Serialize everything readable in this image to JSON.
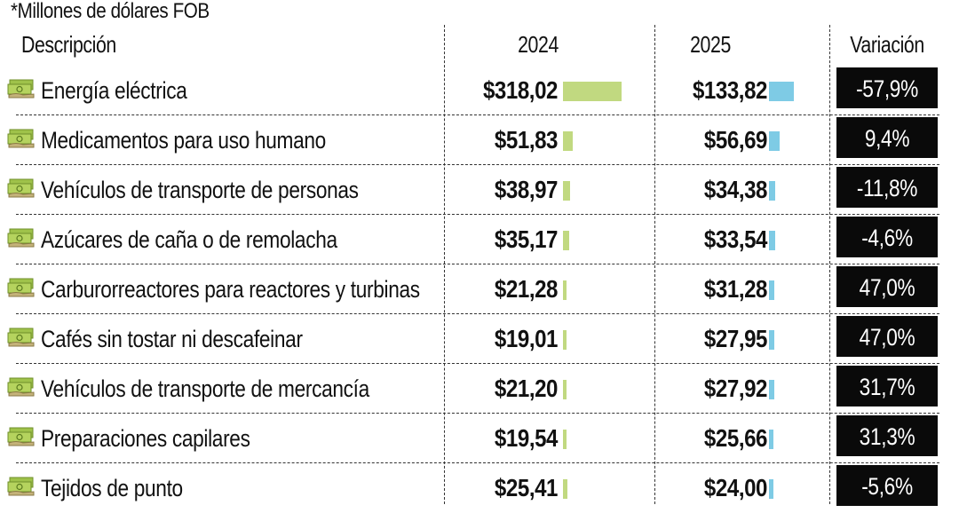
{
  "note": "*Millones de dólares FOB",
  "colors": {
    "bar_2024": "#c1d980",
    "bar_2025": "#7ecbe5",
    "variation_bg": "#0a0a0a"
  },
  "icon": "money-icon",
  "chart_data": {
    "type": "table",
    "columns": [
      "Descripción",
      "2024",
      "2025",
      "Variación"
    ],
    "rows": [
      {
        "desc": "Energía eléctrica",
        "v2024_label": "$318,02",
        "v2024": 318.02,
        "v2025_label": "$133,82",
        "v2025": 133.82,
        "variation": "-57,9%"
      },
      {
        "desc": "Medicamentos para uso humano",
        "v2024_label": "$51,83",
        "v2024": 51.83,
        "v2025_label": "$56,69",
        "v2025": 56.69,
        "variation": "9,4%"
      },
      {
        "desc": "Vehículos de transporte de personas",
        "v2024_label": "$38,97",
        "v2024": 38.97,
        "v2025_label": "$34,38",
        "v2025": 34.38,
        "variation": "-11,8%"
      },
      {
        "desc": "Azúcares de caña o de remolacha",
        "v2024_label": "$35,17",
        "v2024": 35.17,
        "v2025_label": "$33,54",
        "v2025": 33.54,
        "variation": "-4,6%"
      },
      {
        "desc": "Carburorreactores para reactores y turbinas",
        "v2024_label": "$21,28",
        "v2024": 21.28,
        "v2025_label": "$31,28",
        "v2025": 31.28,
        "variation": "47,0%"
      },
      {
        "desc": "Cafés sin tostar ni descafeinar",
        "v2024_label": "$19,01",
        "v2024": 19.01,
        "v2025_label": "$27,95",
        "v2025": 27.95,
        "variation": "47,0%"
      },
      {
        "desc": "Vehículos de transporte de mercancía",
        "v2024_label": "$21,20",
        "v2024": 21.2,
        "v2025_label": "$27,92",
        "v2025": 27.92,
        "variation": "31,7%"
      },
      {
        "desc": "Preparaciones capilares",
        "v2024_label": "$19,54",
        "v2024": 19.54,
        "v2025_label": "$25,66",
        "v2025": 25.66,
        "variation": "31,3%"
      },
      {
        "desc": "Tejidos de punto",
        "v2024_label": "$25,41",
        "v2024": 25.41,
        "v2025_label": "$24,00",
        "v2025": 24.0,
        "variation": "-5,6%"
      }
    ]
  }
}
